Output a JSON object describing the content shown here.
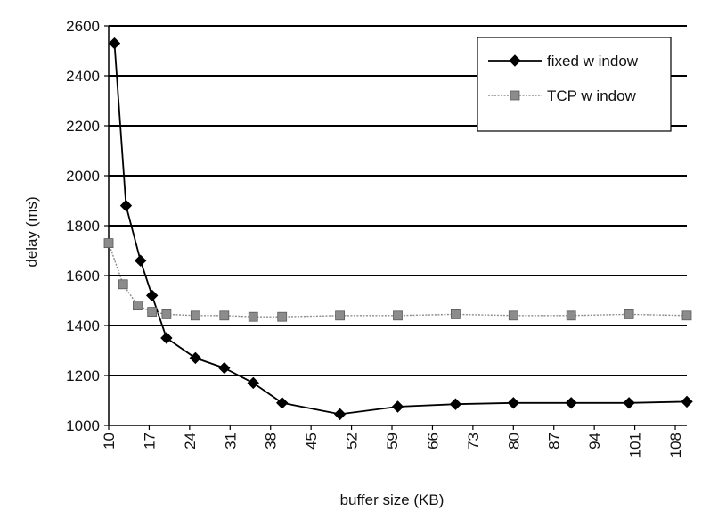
{
  "chart_data": {
    "type": "line",
    "title": "",
    "xlabel": "buffer size (KB)",
    "ylabel": "delay (ms)",
    "xlim": [
      10,
      110
    ],
    "ylim": [
      1000,
      2600
    ],
    "y_ticks": [
      1000,
      1200,
      1400,
      1600,
      1800,
      2000,
      2200,
      2400,
      2600
    ],
    "x_ticks": [
      10,
      17,
      24,
      31,
      38,
      45,
      52,
      59,
      66,
      73,
      80,
      87,
      94,
      101,
      108
    ],
    "grid": "horizontal",
    "legend_position": "top-right",
    "series": [
      {
        "name": "fixed w indow",
        "color": "#000000",
        "marker": "diamond",
        "x": [
          11,
          13,
          15.5,
          17.5,
          20,
          25,
          30,
          35,
          40,
          50,
          60,
          70,
          80,
          90,
          100,
          110
        ],
        "y": [
          2530,
          1880,
          1660,
          1520,
          1350,
          1270,
          1230,
          1170,
          1090,
          1045,
          1075,
          1085,
          1090,
          1090,
          1090,
          1095
        ]
      },
      {
        "name": "TCP w indow",
        "color": "#8c8c8c",
        "marker": "square",
        "x": [
          10,
          12.5,
          15,
          17.5,
          20,
          25,
          30,
          35,
          40,
          50,
          60,
          70,
          80,
          90,
          100,
          110
        ],
        "y": [
          1730,
          1565,
          1480,
          1455,
          1445,
          1440,
          1440,
          1435,
          1435,
          1440,
          1440,
          1445,
          1440,
          1440,
          1445,
          1440
        ]
      }
    ]
  }
}
